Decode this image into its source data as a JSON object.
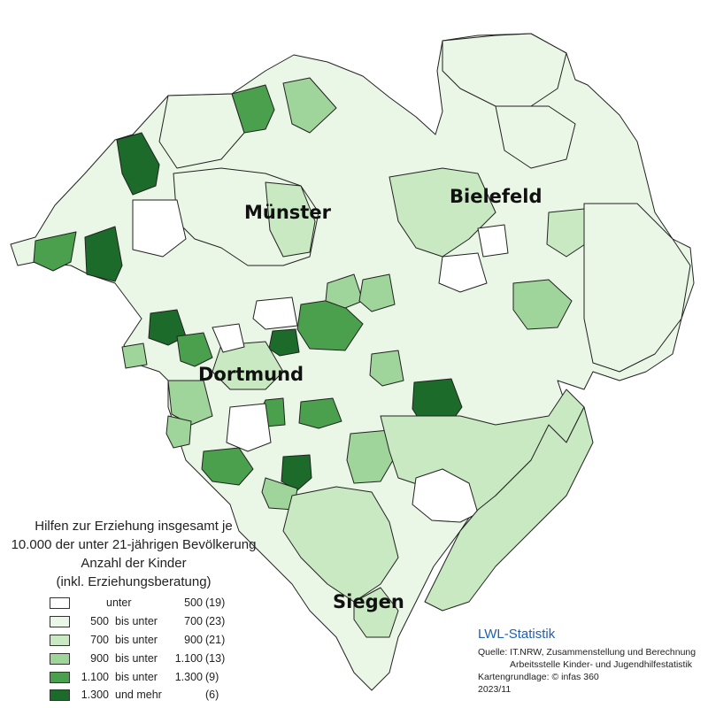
{
  "map": {
    "cities": [
      {
        "name": "Münster"
      },
      {
        "name": "Bielefeld"
      },
      {
        "name": "Dortmund"
      },
      {
        "name": "Siegen"
      }
    ]
  },
  "legend": {
    "title_lines": [
      "Hilfen zur Erziehung insgesamt je",
      "10.000 der unter 21-jährigen Bevölkerung",
      "Anzahl der Kinder",
      "(inkl. Erziehungsberatung)"
    ],
    "classes": [
      {
        "from": "",
        "relation": "unter",
        "to": "500",
        "count": "(19)",
        "color": "#ffffff"
      },
      {
        "from": "500",
        "relation": "bis unter",
        "to": "700",
        "count": "(23)",
        "color": "#eaf7e6"
      },
      {
        "from": "700",
        "relation": "bis unter",
        "to": "900",
        "count": "(21)",
        "color": "#c8e9c1"
      },
      {
        "from": "900",
        "relation": "bis unter",
        "to": "1.100",
        "count": "(13)",
        "color": "#9fd59a"
      },
      {
        "from": "1.100",
        "relation": "bis unter",
        "to": "1.300",
        "count": "(9)",
        "color": "#4aa04d"
      },
      {
        "from": "1.300",
        "relation": "und mehr",
        "to": "",
        "count": "(6)",
        "color": "#1d6b2b"
      }
    ]
  },
  "brand": "LWL-Statistik",
  "source_lines": [
    "Quelle: IT.NRW,  Zusammenstellung und Berechnung",
    "Arbeitsstelle Kinder- und Jugendhilfestatistik",
    "Kartengrundlage: © infas 360",
    "2023/11"
  ]
}
